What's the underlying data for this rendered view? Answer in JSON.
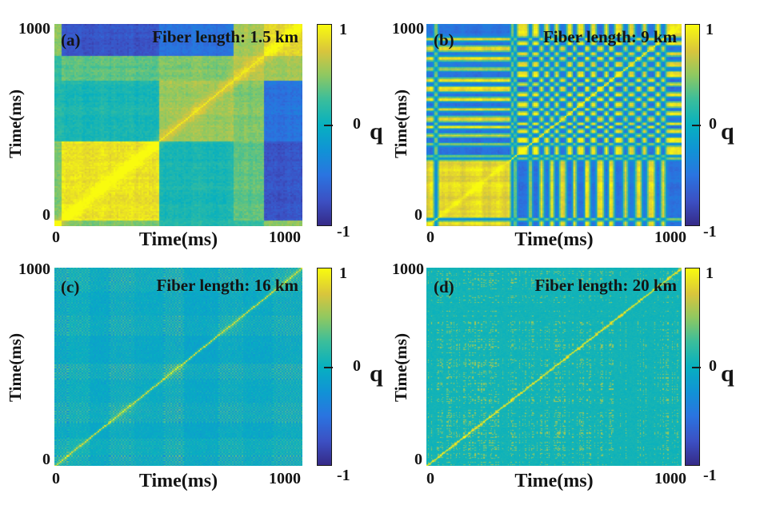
{
  "chart_data": [
    {
      "type": "heatmap",
      "panel_label": "(a)",
      "title": "Fiber length: 1.5 km",
      "xlabel": "Time(ms)",
      "ylabel": "Time(ms)",
      "x_range": [
        0,
        1000
      ],
      "y_range": [
        0,
        1000
      ],
      "x_ticks": [
        "0",
        "1000"
      ],
      "y_ticks": [
        "0",
        "1000"
      ],
      "grid": false,
      "legend": "none",
      "colorbar": {
        "label": "q",
        "ticks": [
          "1",
          "0",
          "-1"
        ],
        "range": [
          -1,
          1
        ],
        "position": "right"
      },
      "gen": {
        "model": "blocks",
        "N": 140,
        "seed": 11,
        "segs": [
          0.03,
          0.39,
          0.3,
          0.12,
          0.16
        ],
        "block_values": [
          [
            0.95,
            0.45,
            0.15,
            0.2,
            0.5
          ],
          [
            0.45,
            0.88,
            0.1,
            0.35,
            -0.72
          ],
          [
            0.15,
            0.1,
            0.55,
            0.45,
            -0.5
          ],
          [
            0.2,
            0.35,
            0.45,
            0.6,
            0.55
          ],
          [
            0.5,
            -0.72,
            -0.5,
            0.55,
            0.82
          ]
        ],
        "stripe": 0.09,
        "noise": 0.07,
        "diag_band_w": 5,
        "diag_band_amp": 0.22,
        "diag_line": 0.95
      }
    },
    {
      "type": "heatmap",
      "panel_label": "(b)",
      "title": "Fiber length: 9 km",
      "xlabel": "Time(ms)",
      "ylabel": "Time(ms)",
      "x_range": [
        0,
        1000
      ],
      "y_range": [
        0,
        1000
      ],
      "x_ticks": [
        "0",
        "1000"
      ],
      "y_ticks": [
        "0",
        "1000"
      ],
      "grid": false,
      "legend": "none",
      "colorbar": {
        "label": "q",
        "ticks": [
          "1",
          "0",
          "-1"
        ],
        "range": [
          -1,
          1
        ],
        "position": "right"
      },
      "gen": {
        "model": "outer",
        "N": 170,
        "seed": 7,
        "sign_segments": [
          [
            0.03,
            1
          ],
          [
            0.012,
            -1
          ],
          [
            0.285,
            1
          ],
          [
            0.016,
            -1
          ],
          [
            0.012,
            1
          ],
          [
            0.045,
            -1
          ],
          [
            0.014,
            1
          ],
          [
            0.028,
            -1
          ],
          [
            0.018,
            1
          ],
          [
            0.02,
            -1
          ],
          [
            0.022,
            1
          ],
          [
            0.016,
            -1
          ],
          [
            0.028,
            1
          ],
          [
            0.022,
            -1
          ],
          [
            0.018,
            1
          ],
          [
            0.03,
            -1
          ],
          [
            0.022,
            1
          ],
          [
            0.024,
            -1
          ],
          [
            0.03,
            1
          ],
          [
            0.018,
            -1
          ],
          [
            0.024,
            1
          ],
          [
            0.035,
            -1
          ],
          [
            0.02,
            1
          ],
          [
            0.028,
            -1
          ],
          [
            0.024,
            1
          ],
          [
            0.02,
            -1
          ],
          [
            0.03,
            1
          ],
          [
            0.024,
            -1
          ],
          [
            0.018,
            1
          ],
          [
            0.066,
            -1
          ]
        ],
        "mag": 0.8,
        "pos_gain": 1.3,
        "neg_gain": 0.78,
        "stripe": 0.06,
        "noise": 0.05,
        "diag_line": 0.92
      }
    },
    {
      "type": "heatmap",
      "panel_label": "(c)",
      "title": "Fiber length: 16 km",
      "xlabel": "Time(ms)",
      "ylabel": "Time(ms)",
      "x_range": [
        0,
        1000
      ],
      "y_range": [
        0,
        1000
      ],
      "x_ticks": [
        "0",
        "1000"
      ],
      "y_ticks": [
        "0",
        "1000"
      ],
      "grid": false,
      "legend": "none",
      "colorbar": {
        "label": "q",
        "ticks": [
          "1",
          "0",
          "-1"
        ],
        "range": [
          -1,
          1
        ],
        "position": "right"
      },
      "gen": {
        "model": "altdots",
        "N": 150,
        "seed": 23,
        "amp_fracs": [
          0.05,
          0.09,
          0.08,
          0.1,
          0.12,
          0.08,
          0.14,
          0.1,
          0.12,
          0.12
        ],
        "amps": [
          0.5,
          0.32,
          0.22,
          0.42,
          0.28,
          0.5,
          0.24,
          0.4,
          0.3,
          0.44
        ],
        "offsets": [
          -0.02,
          0.04,
          -0.1,
          0.02,
          -0.06,
          0.03,
          -0.12,
          0.0,
          -0.08,
          0.02
        ],
        "phases": [
          0,
          1,
          0,
          1,
          1,
          0,
          1,
          0,
          0,
          1
        ],
        "base": 0.02,
        "noise": 0.05,
        "diag_line_amp": 0.55,
        "diag_line_w": 1.3,
        "diag_glow_amp": 0.3,
        "diag_glow_w": 7
      }
    },
    {
      "type": "heatmap",
      "panel_label": "(d)",
      "title": "Fiber length: 20 km",
      "xlabel": "Time(ms)",
      "ylabel": "Time(ms)",
      "x_range": [
        0,
        1000
      ],
      "y_range": [
        0,
        1000
      ],
      "x_ticks": [
        "0",
        "1000"
      ],
      "y_ticks": [
        "0",
        "1000"
      ],
      "grid": false,
      "legend": "none",
      "colorbar": {
        "label": "q",
        "ticks": [
          "1",
          "0",
          "-1"
        ],
        "range": [
          -1,
          1
        ],
        "position": "right"
      },
      "gen": {
        "model": "speckle",
        "N": 230,
        "seed": 5,
        "base": 0.06,
        "noise": 0.05,
        "row_active_p": 0.42,
        "dot_thresh": 0.3,
        "dot_p": 0.38,
        "dot_amp": 0.45,
        "diag_line_amp": 0.92,
        "diag_line_w": 1.0,
        "blob_p": 0.25,
        "blob_amp": 0.35,
        "blob_w": 2.5
      }
    }
  ],
  "colormap": {
    "name": "parula",
    "stops": [
      {
        "t": 0.0,
        "c": "#352a87"
      },
      {
        "t": 0.12,
        "c": "#3c50c3"
      },
      {
        "t": 0.25,
        "c": "#2a74e0"
      },
      {
        "t": 0.37,
        "c": "#1192d6"
      },
      {
        "t": 0.5,
        "c": "#07b0c0"
      },
      {
        "t": 0.63,
        "c": "#3cbe9a"
      },
      {
        "t": 0.75,
        "c": "#8fc861"
      },
      {
        "t": 0.87,
        "c": "#d9c53c"
      },
      {
        "t": 1.0,
        "c": "#f9fb0e"
      }
    ]
  },
  "text_color": "#141414"
}
